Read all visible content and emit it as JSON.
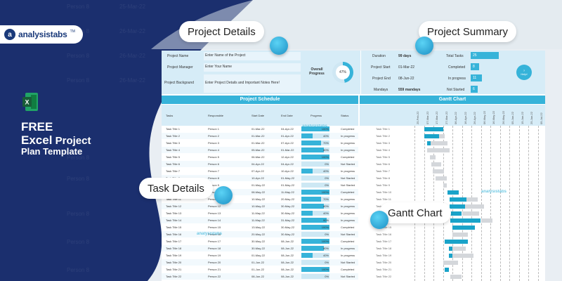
{
  "brand": {
    "name": "analysistabs",
    "tm": "TM",
    "mark": "a"
  },
  "promo": {
    "line1": "FREE",
    "line2a": "Excel",
    "line2b": "Project",
    "line3": "Plan Template"
  },
  "callouts": {
    "project_details": "Project Details",
    "project_summary": "Project Summary",
    "task_details": "Task Details",
    "gantt_chart": "Gantt Chart"
  },
  "header": {
    "project_name_label": "Project Name",
    "project_name_value": "Enter Name of the Project",
    "project_manager_label": "Project Manager",
    "project_manager_value": "Enter Your Name",
    "project_background_label": "Project Backgound",
    "project_background_value": "Enter Project Details and Important Notes Here!",
    "overall_progress_label": "Overall Progress",
    "overall_progress_value": "47%",
    "overall_progress_fraction": 0.47,
    "duration_label": "Duration",
    "duration_value": "99 days",
    "project_start_label": "Project Start",
    "project_start_value": "01-Mar-22",
    "project_end_label": "Project End",
    "project_end_value": "08-Jun-22",
    "mandays_label": "Mandays",
    "mandays_value": "559 mandays",
    "total_tasks_label": "Total Tasks",
    "total_tasks_value": "25",
    "completed_label": "Completed",
    "completed_value": "8",
    "in_progress_label": "In progress",
    "in_progress_value": "11",
    "not_started_label": "Not Started",
    "not_started_value": "6",
    "help_label": "Help!"
  },
  "schedule": {
    "title": "Project Schedule",
    "gantt_title": "Gantt Chart",
    "columns": {
      "tasks": "Tasks",
      "responsible": "Responsible",
      "start": "Start Date",
      "end": "End Date",
      "progress": "Progress",
      "status": "Status"
    },
    "rows": [
      {
        "task": "Task Title 1",
        "resp": "Person 1",
        "start": "01-Mar-22",
        "end": "04-Apr-22",
        "progress": "100%",
        "pct": 100,
        "status": "Completed",
        "label": "Task Title 1"
      },
      {
        "task": "Task Title 2",
        "resp": "Person 2",
        "start": "01-Mar-22",
        "end": "01-Apr-22",
        "progress": "40%",
        "pct": 40,
        "status": "In progress",
        "label": "Task Title 2"
      },
      {
        "task": "Task Title 3",
        "resp": "Person 3",
        "start": "01-Mar-22",
        "end": "07-Apr-22",
        "progress": "70%",
        "pct": 70,
        "status": "In progress",
        "label": "Task Title 3"
      },
      {
        "task": "Task Title 4",
        "resp": "Person 4",
        "start": "05-Mar-22",
        "end": "01-Mar-22",
        "progress": "80%",
        "pct": 80,
        "status": "In progress",
        "label": "Task Title 4"
      },
      {
        "task": "Task Title 5",
        "resp": "Person 5",
        "start": "06-Mar-22",
        "end": "12-Apr-22",
        "progress": "100%",
        "pct": 100,
        "status": "Completed",
        "label": "Task Title 5"
      },
      {
        "task": "Task Title 6",
        "resp": "Person 6",
        "start": "04-Apr-22",
        "end": "04-Apr-22",
        "progress": "0%",
        "pct": 0,
        "status": "Not Started",
        "label": "Task Title 6"
      },
      {
        "task": "Task Title 7",
        "resp": "Person 7",
        "start": "07-Apr-22",
        "end": "10-Apr-22",
        "progress": "40%",
        "pct": 40,
        "status": "In progress",
        "label": "Task Title 7"
      },
      {
        "task": "Task Title 8",
        "resp": "Person 8",
        "start": "10-Apr-22",
        "end": "01-May-22",
        "progress": "0%",
        "pct": 0,
        "status": "Not Started",
        "label": "Task Title 8"
      },
      {
        "task": "Task Title 9",
        "resp": "Person 9",
        "start": "01-May-22",
        "end": "01-May-22",
        "progress": "0%",
        "pct": 0,
        "status": "Not Started",
        "label": "Task Title 9"
      },
      {
        "task": "Task Title 10",
        "resp": "Person 10",
        "start": "08-May-22",
        "end": "11-May-22",
        "progress": "100%",
        "pct": 100,
        "status": "Completed",
        "label": "Task Title 10"
      },
      {
        "task": "Task Title 11",
        "resp": "Person 11",
        "start": "10-May-22",
        "end": "20-May-22",
        "progress": "70%",
        "pct": 70,
        "status": "In progress",
        "label": "Task Title 11"
      },
      {
        "task": "Task Title 12",
        "resp": "Person 12",
        "start": "10-May-22",
        "end": "30-May-22",
        "progress": "80%",
        "pct": 80,
        "status": "In progress",
        "label": "Task Title 12"
      },
      {
        "task": "Task Title 13",
        "resp": "Person 13",
        "start": "11-May-22",
        "end": "30-May-22",
        "progress": "40%",
        "pct": 40,
        "status": "In progress",
        "label": "Task Title 13"
      },
      {
        "task": "Task Title 14",
        "resp": "Person 14",
        "start": "11-May-22",
        "end": "31-May-22",
        "progress": "90%",
        "pct": 90,
        "status": "In progress",
        "label": "Task Title 14"
      },
      {
        "task": "Task Title 15",
        "resp": "Person 15",
        "start": "13-May-22",
        "end": "30-May-22",
        "progress": "100%",
        "pct": 100,
        "status": "Completed",
        "label": "Task Title 15"
      },
      {
        "task": "Task Title 16",
        "resp": "Person 16",
        "start": "20-May-22",
        "end": "30-May-22",
        "progress": "0%",
        "pct": 0,
        "status": "Not Started",
        "label": "Task Title 16"
      },
      {
        "task": "Task Title 17",
        "resp": "Person 17",
        "start": "30-May-22",
        "end": "08-Jun-22",
        "progress": "100%",
        "pct": 100,
        "status": "Completed",
        "label": "Task Title 17"
      },
      {
        "task": "Task Title 18",
        "resp": "Person 18",
        "start": "30-May-22",
        "end": "08-Jun-22",
        "progress": "80%",
        "pct": 80,
        "status": "In progress",
        "label": "Task Title 18"
      },
      {
        "task": "Task Title 19",
        "resp": "Person 19",
        "start": "01-May-22",
        "end": "08-Jun-22",
        "progress": "40%",
        "pct": 40,
        "status": "In progress",
        "label": "Task Title 19"
      },
      {
        "task": "Task Title 20",
        "resp": "Person 20",
        "start": "01-Jun-22",
        "end": "08-Jun-22",
        "progress": "0%",
        "pct": 0,
        "status": "Not Started",
        "label": "Task Title 20"
      },
      {
        "task": "Task Title 21",
        "resp": "Person 21",
        "start": "01-Jun-22",
        "end": "08-Jun-22",
        "progress": "100%",
        "pct": 100,
        "status": "Completed",
        "label": "Task Title 21"
      },
      {
        "task": "Task Title 22",
        "resp": "Person 22",
        "start": "08-Jun-22",
        "end": "08-Jun-22",
        "progress": "0%",
        "pct": 0,
        "status": "Not Started",
        "label": "Task Title 22"
      }
    ],
    "gantt_dates": [
      "25-Feb-22",
      "07-Mar-22",
      "17-Mar-22",
      "27-Mar-22",
      "06-Apr-22",
      "16-Apr-22",
      "26-Apr-22",
      "06-May-22",
      "16-May-22",
      "26-May-22",
      "05-Jun-22",
      "15-Jun-22",
      "25-Jun-22",
      "05-Jul-22",
      "15-Jul-22"
    ],
    "gantt_bars": [
      {
        "s": 1,
        "blue": 1.0,
        "grey": 0
      },
      {
        "s": 1,
        "blue": 0.8,
        "grey": 0.3
      },
      {
        "s": 1.3,
        "blue": 0.2,
        "grey": 0.9
      },
      {
        "s": 1.3,
        "blue": 0,
        "grey": 1.2
      },
      {
        "s": 1.6,
        "blue": 0,
        "grey": 0.3
      },
      {
        "s": 1.8,
        "blue": 0,
        "grey": 0.5
      },
      {
        "s": 1.9,
        "blue": 0,
        "grey": 0.6
      },
      {
        "s": 2.2,
        "blue": 0,
        "grey": 0.6
      },
      {
        "s": 3.0,
        "blue": 0,
        "grey": 0.2
      },
      {
        "s": 3.5,
        "blue": 0.6,
        "grey": 0
      },
      {
        "s": 3.7,
        "blue": 0.9,
        "grey": 0.6
      },
      {
        "s": 3.7,
        "blue": 0.8,
        "grey": 1.0
      },
      {
        "s": 3.8,
        "blue": 0.6,
        "grey": 0.9
      },
      {
        "s": 3.8,
        "blue": 1.6,
        "grey": 0.6
      },
      {
        "s": 4.0,
        "blue": 1.2,
        "grey": 0
      },
      {
        "s": 4.0,
        "blue": 0,
        "grey": 0.8
      },
      {
        "s": 3.2,
        "blue": 1.2,
        "grey": 0
      },
      {
        "s": 3.6,
        "blue": 0.2,
        "grey": 0.7
      },
      {
        "s": 3.6,
        "blue": 0.2,
        "grey": 1.1
      },
      {
        "s": 3.0,
        "blue": 0,
        "grey": 0.8
      },
      {
        "s": 3.2,
        "blue": 0.2,
        "grey": 0
      },
      {
        "s": 3.8,
        "blue": 0,
        "grey": 0.6
      }
    ],
    "gantt_colors": {
      "done": "#1aa3c9",
      "remaining": "#d4d7db"
    }
  },
  "watermark": "analysistabs",
  "colors": {
    "navy": "#1b2f6e",
    "accent": "#36b3d9"
  }
}
